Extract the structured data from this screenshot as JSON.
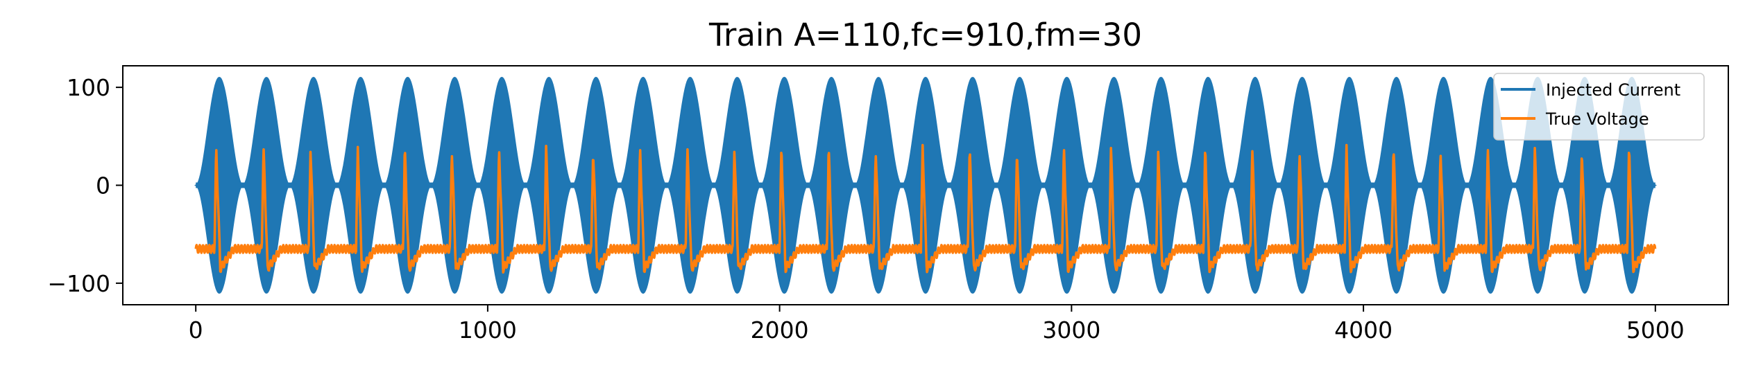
{
  "chart_data": {
    "type": "line",
    "title": "Train A=110,fc=910,fm=30",
    "xlabel": "",
    "ylabel": "",
    "xlim": [
      -250,
      5250
    ],
    "ylim": [
      -122,
      122
    ],
    "x_ticks": [
      0,
      1000,
      2000,
      3000,
      4000,
      5000
    ],
    "x_tick_labels": [
      "0",
      "1000",
      "2000",
      "3000",
      "4000",
      "5000"
    ],
    "y_ticks": [
      100,
      0,
      -100
    ],
    "y_tick_labels": [
      "100",
      "0",
      "−100"
    ],
    "grid": false,
    "legend_position": "upper right",
    "series": [
      {
        "name": "Injected Current",
        "color": "#1f77b4",
        "x_range": [
          0,
          5000
        ],
        "amplitude": 110,
        "lobes": 31
      },
      {
        "name": "True Voltage",
        "color": "#ff7f0e",
        "x_range": [
          0,
          5000
        ],
        "resting_level": -65,
        "trough_level": -85,
        "spike_peak": 38,
        "spike_times": [
          70,
          232,
          393,
          555,
          716,
          877,
          1039,
          1200,
          1361,
          1522,
          1684,
          1845,
          2006,
          2168,
          2329,
          2490,
          2651,
          2813,
          2974,
          3135,
          3297,
          3458,
          3619,
          3781,
          3942,
          4103,
          4264,
          4426,
          4587,
          4748,
          4910
        ]
      }
    ]
  }
}
